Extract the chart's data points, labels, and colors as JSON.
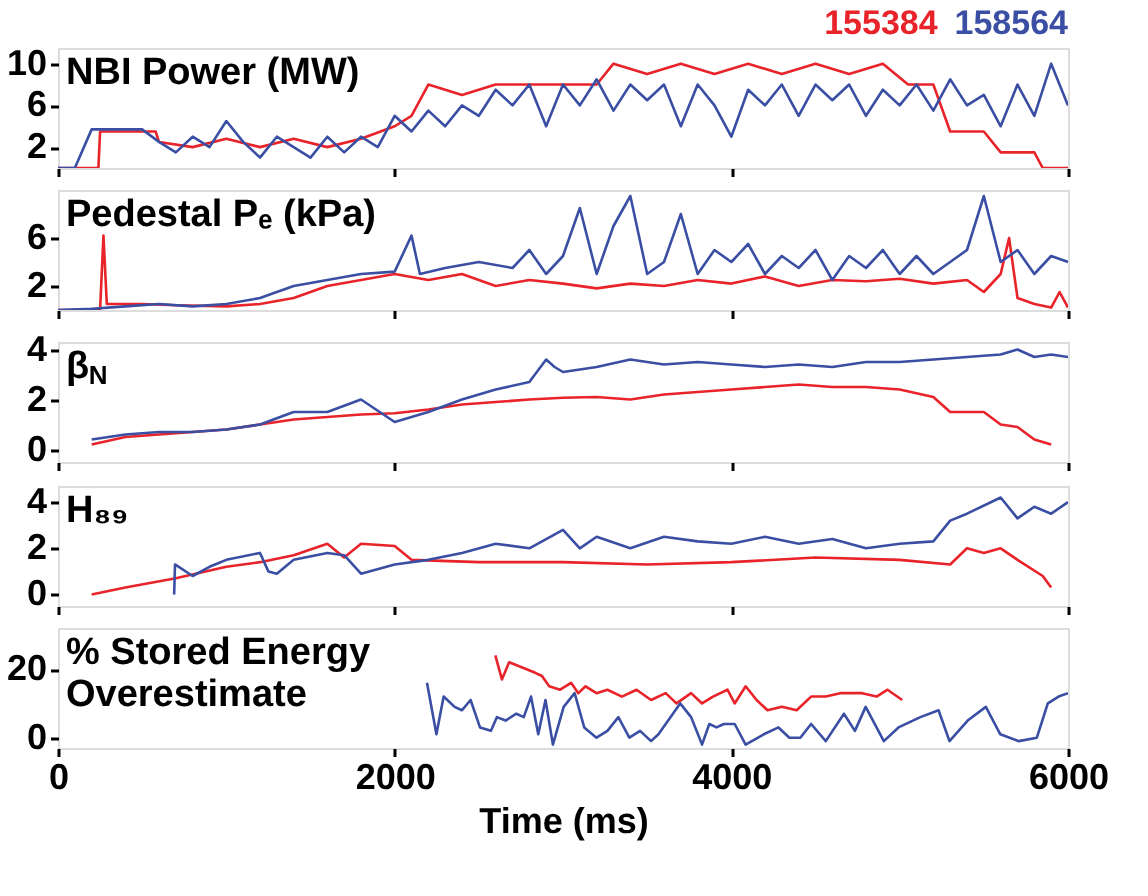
{
  "chart_data": [
    {
      "type": "line",
      "title": "NBI Power (MW)",
      "xlim": [
        0,
        6000
      ],
      "xticks": [
        0,
        2000,
        4000,
        6000
      ],
      "ylim": [
        0,
        11.5
      ],
      "yticks": [
        2,
        6,
        10
      ],
      "tick_labels": "y",
      "legend": "top right",
      "series": [
        {
          "name": "155384",
          "color": "#e8232a",
          "x": [
            0,
            240,
            250,
            580,
            600,
            800,
            1000,
            1200,
            1400,
            1600,
            1800,
            2000,
            2100,
            2200,
            2400,
            2600,
            2800,
            3000,
            3200,
            3300,
            3500,
            3700,
            3900,
            4100,
            4300,
            4500,
            4700,
            4900,
            5050,
            5200,
            5300,
            5500,
            5600,
            5800,
            5850,
            6000
          ],
          "values": [
            0,
            0,
            3.5,
            3.5,
            2.5,
            2,
            2.8,
            2,
            2.8,
            2,
            2.8,
            4,
            5,
            8,
            7,
            8,
            8,
            8,
            8,
            10,
            9,
            10,
            9,
            10,
            9,
            10,
            9,
            10,
            8,
            8,
            3.5,
            3.5,
            1.5,
            1.5,
            0,
            0
          ]
        },
        {
          "name": "158564",
          "color": "#3a4fa3",
          "x": [
            0,
            100,
            200,
            300,
            400,
            500,
            600,
            700,
            800,
            900,
            1000,
            1100,
            1200,
            1300,
            1400,
            1500,
            1600,
            1700,
            1800,
            1900,
            2000,
            2100,
            2200,
            2300,
            2400,
            2500,
            2600,
            2700,
            2800,
            2900,
            3000,
            3100,
            3200,
            3300,
            3400,
            3500,
            3600,
            3700,
            3800,
            3900,
            4000,
            4100,
            4200,
            4300,
            4400,
            4500,
            4600,
            4700,
            4800,
            4900,
            5000,
            5100,
            5200,
            5300,
            5400,
            5500,
            5600,
            5700,
            5800,
            5900,
            6000
          ],
          "values": [
            0,
            0,
            3.7,
            3.7,
            3.7,
            3.7,
            2.5,
            1.5,
            3,
            2,
            4.5,
            2.5,
            1,
            3,
            2,
            1,
            3,
            1.5,
            3,
            2,
            5,
            3.5,
            5.5,
            4,
            6,
            5,
            7.5,
            6,
            8,
            4,
            8,
            6,
            8.5,
            5.5,
            8,
            6.5,
            8,
            4,
            8,
            6,
            3,
            7.5,
            6,
            8,
            5,
            8,
            6.5,
            8,
            5,
            7.5,
            6,
            8,
            5.5,
            8.5,
            6,
            7,
            4,
            8,
            5,
            10,
            6
          ]
        }
      ]
    },
    {
      "type": "line",
      "title": "Pedestal Pₑ (kPa)",
      "xlim": [
        0,
        6000
      ],
      "xticks": [
        0,
        2000,
        4000,
        6000
      ],
      "ylim": [
        0,
        10
      ],
      "yticks": [
        2,
        6
      ],
      "tick_labels": "y",
      "series": [
        {
          "color": "#e8232a",
          "x": [
            0,
            250,
            270,
            290,
            500,
            700,
            1000,
            1200,
            1400,
            1600,
            1800,
            2000,
            2200,
            2400,
            2600,
            2800,
            3000,
            3200,
            3400,
            3600,
            3800,
            4000,
            4200,
            4400,
            4600,
            4800,
            5000,
            5200,
            5400,
            5500,
            5600,
            5650,
            5700,
            5800,
            5900,
            5950,
            6000
          ],
          "values": [
            0,
            0,
            6.2,
            0.5,
            0.5,
            0.4,
            0.3,
            0.5,
            1,
            2,
            2.5,
            3,
            2.5,
            3,
            2,
            2.5,
            2.2,
            1.8,
            2.2,
            2,
            2.5,
            2.2,
            2.8,
            2,
            2.5,
            2.4,
            2.6,
            2.2,
            2.5,
            1.5,
            3,
            6,
            1,
            0.5,
            0.2,
            1.5,
            0.2
          ]
        },
        {
          "color": "#3a4fa3",
          "x": [
            0,
            200,
            400,
            600,
            800,
            1000,
            1200,
            1400,
            1600,
            1800,
            2000,
            2100,
            2150,
            2300,
            2500,
            2700,
            2800,
            2900,
            3000,
            3100,
            3200,
            3300,
            3400,
            3500,
            3600,
            3700,
            3800,
            3900,
            4000,
            4100,
            4200,
            4300,
            4400,
            4500,
            4600,
            4700,
            4800,
            4900,
            5000,
            5100,
            5200,
            5300,
            5400,
            5500,
            5600,
            5700,
            5800,
            5900,
            6000
          ],
          "values": [
            0,
            0.1,
            0.3,
            0.5,
            0.3,
            0.5,
            1,
            2,
            2.5,
            3,
            3.2,
            6.2,
            3,
            3.5,
            4,
            3.5,
            5,
            3,
            4.5,
            8.5,
            3,
            7,
            9.5,
            3,
            4,
            8,
            3,
            5,
            4,
            5.5,
            3,
            4.5,
            3.5,
            5,
            2.5,
            4.5,
            3.5,
            5,
            3,
            4.5,
            3,
            4,
            5,
            9.5,
            4,
            5,
            3,
            4.5,
            4
          ]
        }
      ]
    },
    {
      "type": "line",
      "title": "β$_{N}$",
      "xlim": [
        0,
        6000
      ],
      "xticks": [
        0,
        2000,
        4000,
        6000
      ],
      "ylim": [
        -0.5,
        4.3
      ],
      "yticks": [
        0,
        2,
        4
      ],
      "tick_labels": "y",
      "series": [
        {
          "color": "#e8232a",
          "x": [
            200,
            400,
            600,
            800,
            1000,
            1200,
            1400,
            1600,
            1800,
            2000,
            2200,
            2400,
            2600,
            2800,
            3000,
            3200,
            3400,
            3600,
            3800,
            4000,
            4200,
            4400,
            4600,
            4800,
            5000,
            5200,
            5300,
            5500,
            5600,
            5700,
            5800,
            5900
          ],
          "values": [
            0.2,
            0.5,
            0.6,
            0.7,
            0.8,
            1.0,
            1.2,
            1.3,
            1.4,
            1.45,
            1.6,
            1.8,
            1.9,
            2.0,
            2.07,
            2.1,
            2.0,
            2.2,
            2.3,
            2.4,
            2.5,
            2.6,
            2.5,
            2.5,
            2.4,
            2.1,
            1.5,
            1.5,
            1.0,
            0.9,
            0.4,
            0.2
          ]
        },
        {
          "color": "#3a4fa3",
          "x": [
            200,
            400,
            600,
            800,
            1000,
            1200,
            1400,
            1600,
            1800,
            2000,
            2200,
            2400,
            2600,
            2800,
            2900,
            2950,
            3000,
            3200,
            3400,
            3600,
            3800,
            4000,
            4200,
            4400,
            4600,
            4800,
            5000,
            5200,
            5400,
            5600,
            5700,
            5800,
            5900,
            6000
          ],
          "values": [
            0.4,
            0.6,
            0.7,
            0.7,
            0.8,
            1.0,
            1.5,
            1.5,
            2.0,
            1.1,
            1.5,
            2.0,
            2.4,
            2.7,
            3.6,
            3.3,
            3.1,
            3.3,
            3.6,
            3.4,
            3.5,
            3.4,
            3.3,
            3.4,
            3.3,
            3.5,
            3.5,
            3.6,
            3.7,
            3.8,
            4.0,
            3.7,
            3.8,
            3.7
          ]
        }
      ]
    },
    {
      "type": "line",
      "title": "H₈₉",
      "xlim": [
        0,
        6000
      ],
      "xticks": [
        0,
        2000,
        4000,
        6000
      ],
      "ylim": [
        -0.5,
        4.7
      ],
      "yticks": [
        0,
        2,
        4
      ],
      "tick_labels": "y",
      "series": [
        {
          "color": "#e8232a",
          "x": [
            200,
            400,
            700,
            1000,
            1200,
            1400,
            1600,
            1700,
            1800,
            2000,
            2100,
            2500,
            3000,
            3500,
            4000,
            4500,
            5000,
            5300,
            5400,
            5500,
            5600,
            5700,
            5850,
            5900
          ],
          "values": [
            0,
            0.3,
            0.7,
            1.2,
            1.4,
            1.7,
            2.2,
            1.6,
            2.2,
            2.1,
            1.5,
            1.4,
            1.4,
            1.3,
            1.4,
            1.6,
            1.5,
            1.3,
            2.0,
            1.8,
            2.0,
            1.5,
            0.8,
            0.3
          ]
        },
        {
          "color": "#3a4fa3",
          "x": [
            690,
            695,
            800,
            900,
            1000,
            1200,
            1250,
            1300,
            1400,
            1600,
            1700,
            1800,
            2000,
            2200,
            2400,
            2600,
            2800,
            3000,
            3100,
            3200,
            3400,
            3600,
            3800,
            4000,
            4200,
            4400,
            4600,
            4800,
            5000,
            5200,
            5300,
            5400,
            5600,
            5700,
            5800,
            5900,
            6000
          ],
          "values": [
            0,
            1.3,
            0.8,
            1.2,
            1.5,
            1.8,
            1.0,
            0.9,
            1.5,
            1.8,
            1.7,
            0.9,
            1.3,
            1.5,
            1.8,
            2.2,
            2.0,
            2.8,
            2.0,
            2.5,
            2.0,
            2.5,
            2.3,
            2.2,
            2.5,
            2.2,
            2.4,
            2.0,
            2.2,
            2.3,
            3.2,
            3.5,
            4.2,
            3.3,
            3.8,
            3.5,
            4.0
          ]
        }
      ]
    },
    {
      "type": "line",
      "title": "% Stored Energy\nOverestimate",
      "xlabel": "Time (ms)",
      "xlim": [
        0,
        6000
      ],
      "xticks": [
        0,
        2000,
        4000,
        6000
      ],
      "ylim": [
        -3,
        32
      ],
      "yticks": [
        0,
        20
      ],
      "series": [
        {
          "color": "#e8232a",
          "x": [
            2598,
            2637,
            2680,
            2832,
            2875,
            2918,
            2983,
            3048,
            3091,
            3134,
            3199,
            3264,
            3350,
            3437,
            3523,
            3610,
            3674,
            3761,
            3826,
            3891,
            3977,
            4020,
            4085,
            4150,
            4215,
            4301,
            4388,
            4474,
            4561,
            4647,
            4777,
            4863,
            4928,
            5015
          ],
          "values": [
            24,
            17,
            22,
            19,
            18,
            15,
            14,
            16,
            13,
            15,
            13,
            14,
            12,
            14,
            11,
            13,
            10,
            13,
            10,
            12,
            14,
            10,
            15,
            11,
            8,
            9,
            8,
            12,
            12,
            13,
            13,
            12,
            14,
            11
          ]
        },
        {
          "color": "#3a4fa3",
          "x": [
            2192,
            2248,
            2291,
            2356,
            2399,
            2451,
            2507,
            2572,
            2607,
            2659,
            2723,
            2767,
            2810,
            2853,
            2896,
            2940,
            3004,
            3069,
            3126,
            3199,
            3264,
            3329,
            3394,
            3458,
            3523,
            3567,
            3696,
            3761,
            3826,
            3869,
            3912,
            3956,
            4020,
            4085,
            4193,
            4280,
            4345,
            4410,
            4474,
            4561,
            4669,
            4734,
            4798,
            4906,
            4993,
            5123,
            5231,
            5296,
            5404,
            5512,
            5598,
            5707,
            5815,
            5880,
            5944,
            6000
          ],
          "values": [
            16,
            1,
            12,
            9,
            8,
            11,
            3,
            2,
            6,
            5,
            7,
            6,
            12,
            1,
            11,
            -2,
            9,
            13,
            3,
            0,
            2,
            6,
            0,
            2,
            -1,
            1,
            10,
            6,
            -2,
            4,
            3,
            4,
            4,
            -2,
            1,
            3,
            0,
            0,
            4,
            -1,
            7,
            2,
            9,
            -1,
            3,
            6,
            8,
            -1,
            5,
            9,
            1,
            -1,
            0,
            10,
            12,
            13
          ]
        }
      ]
    }
  ]
}
